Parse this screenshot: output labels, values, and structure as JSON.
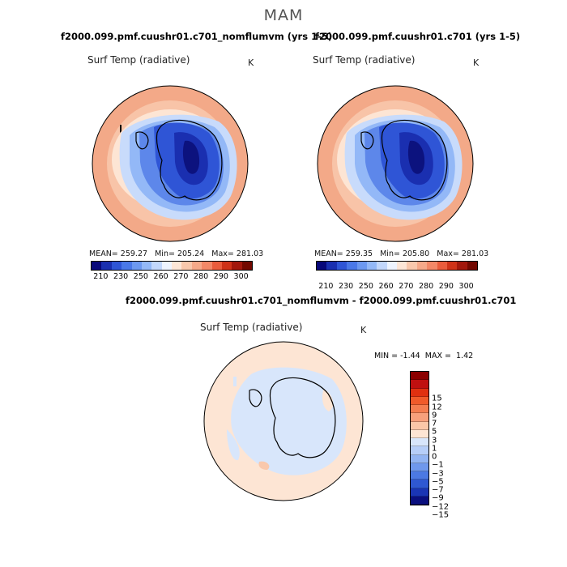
{
  "figure": {
    "season": "MAM",
    "panels": [
      {
        "title": "f2000.099.pmf.cuushr01.c701_nomflumvm (yrs 1-5)",
        "variable": "Surf Temp (radiative)",
        "units": "K",
        "stats": {
          "mean_label": "MEAN=",
          "mean": "259.27",
          "min_label": "Min=",
          "min": "205.24",
          "max_label": "Max=",
          "max": "281.03"
        }
      },
      {
        "title": "f2000.099.pmf.cuushr01.c701 (yrs 1-5)",
        "variable": "Surf Temp (radiative)",
        "units": "K",
        "stats": {
          "mean_label": "MEAN=",
          "mean": "259.35",
          "min_label": "Min=",
          "min": "205.80",
          "max_label": "Max=",
          "max": "281.03"
        }
      }
    ],
    "diff_panel": {
      "title": "f2000.099.pmf.cuushr01.c701_nomflumvm - f2000.099.pmf.cuushr01.c701",
      "variable": "Surf Temp (radiative)",
      "units": "K",
      "min_label": "MIN =",
      "min": "-1.44",
      "max_label": "MAX =",
      "max": "1.42"
    }
  },
  "colorbar_abs": {
    "colors": [
      "#08087a",
      "#1a2fb0",
      "#2f55d6",
      "#4a78e8",
      "#6c98f0",
      "#93b8f7",
      "#c2d7fb",
      "#eef4fe",
      "#fde6d6",
      "#f9c8ac",
      "#f6a989",
      "#f38867",
      "#ea5c3c",
      "#cf3218",
      "#a2170c",
      "#720800"
    ],
    "labels": [
      "210",
      "230",
      "250",
      "260",
      "270",
      "280",
      "290",
      "300"
    ]
  },
  "colorbar_diff": {
    "colors": [
      "#8b0000",
      "#c01010",
      "#e03010",
      "#f05a2a",
      "#f47d50",
      "#f7a07c",
      "#fbc7a8",
      "#fde5d4",
      "#d8e6fb",
      "#b6cef8",
      "#92b4f2",
      "#6f98ec",
      "#4c79e2",
      "#2f58d2",
      "#1a35b4",
      "#0a0f7e"
    ],
    "labels": [
      "15",
      "12",
      "9",
      "7",
      "5",
      "3",
      "1",
      "0",
      "−1",
      "−3",
      "−5",
      "−7",
      "−9",
      "−12",
      "−15"
    ]
  }
}
